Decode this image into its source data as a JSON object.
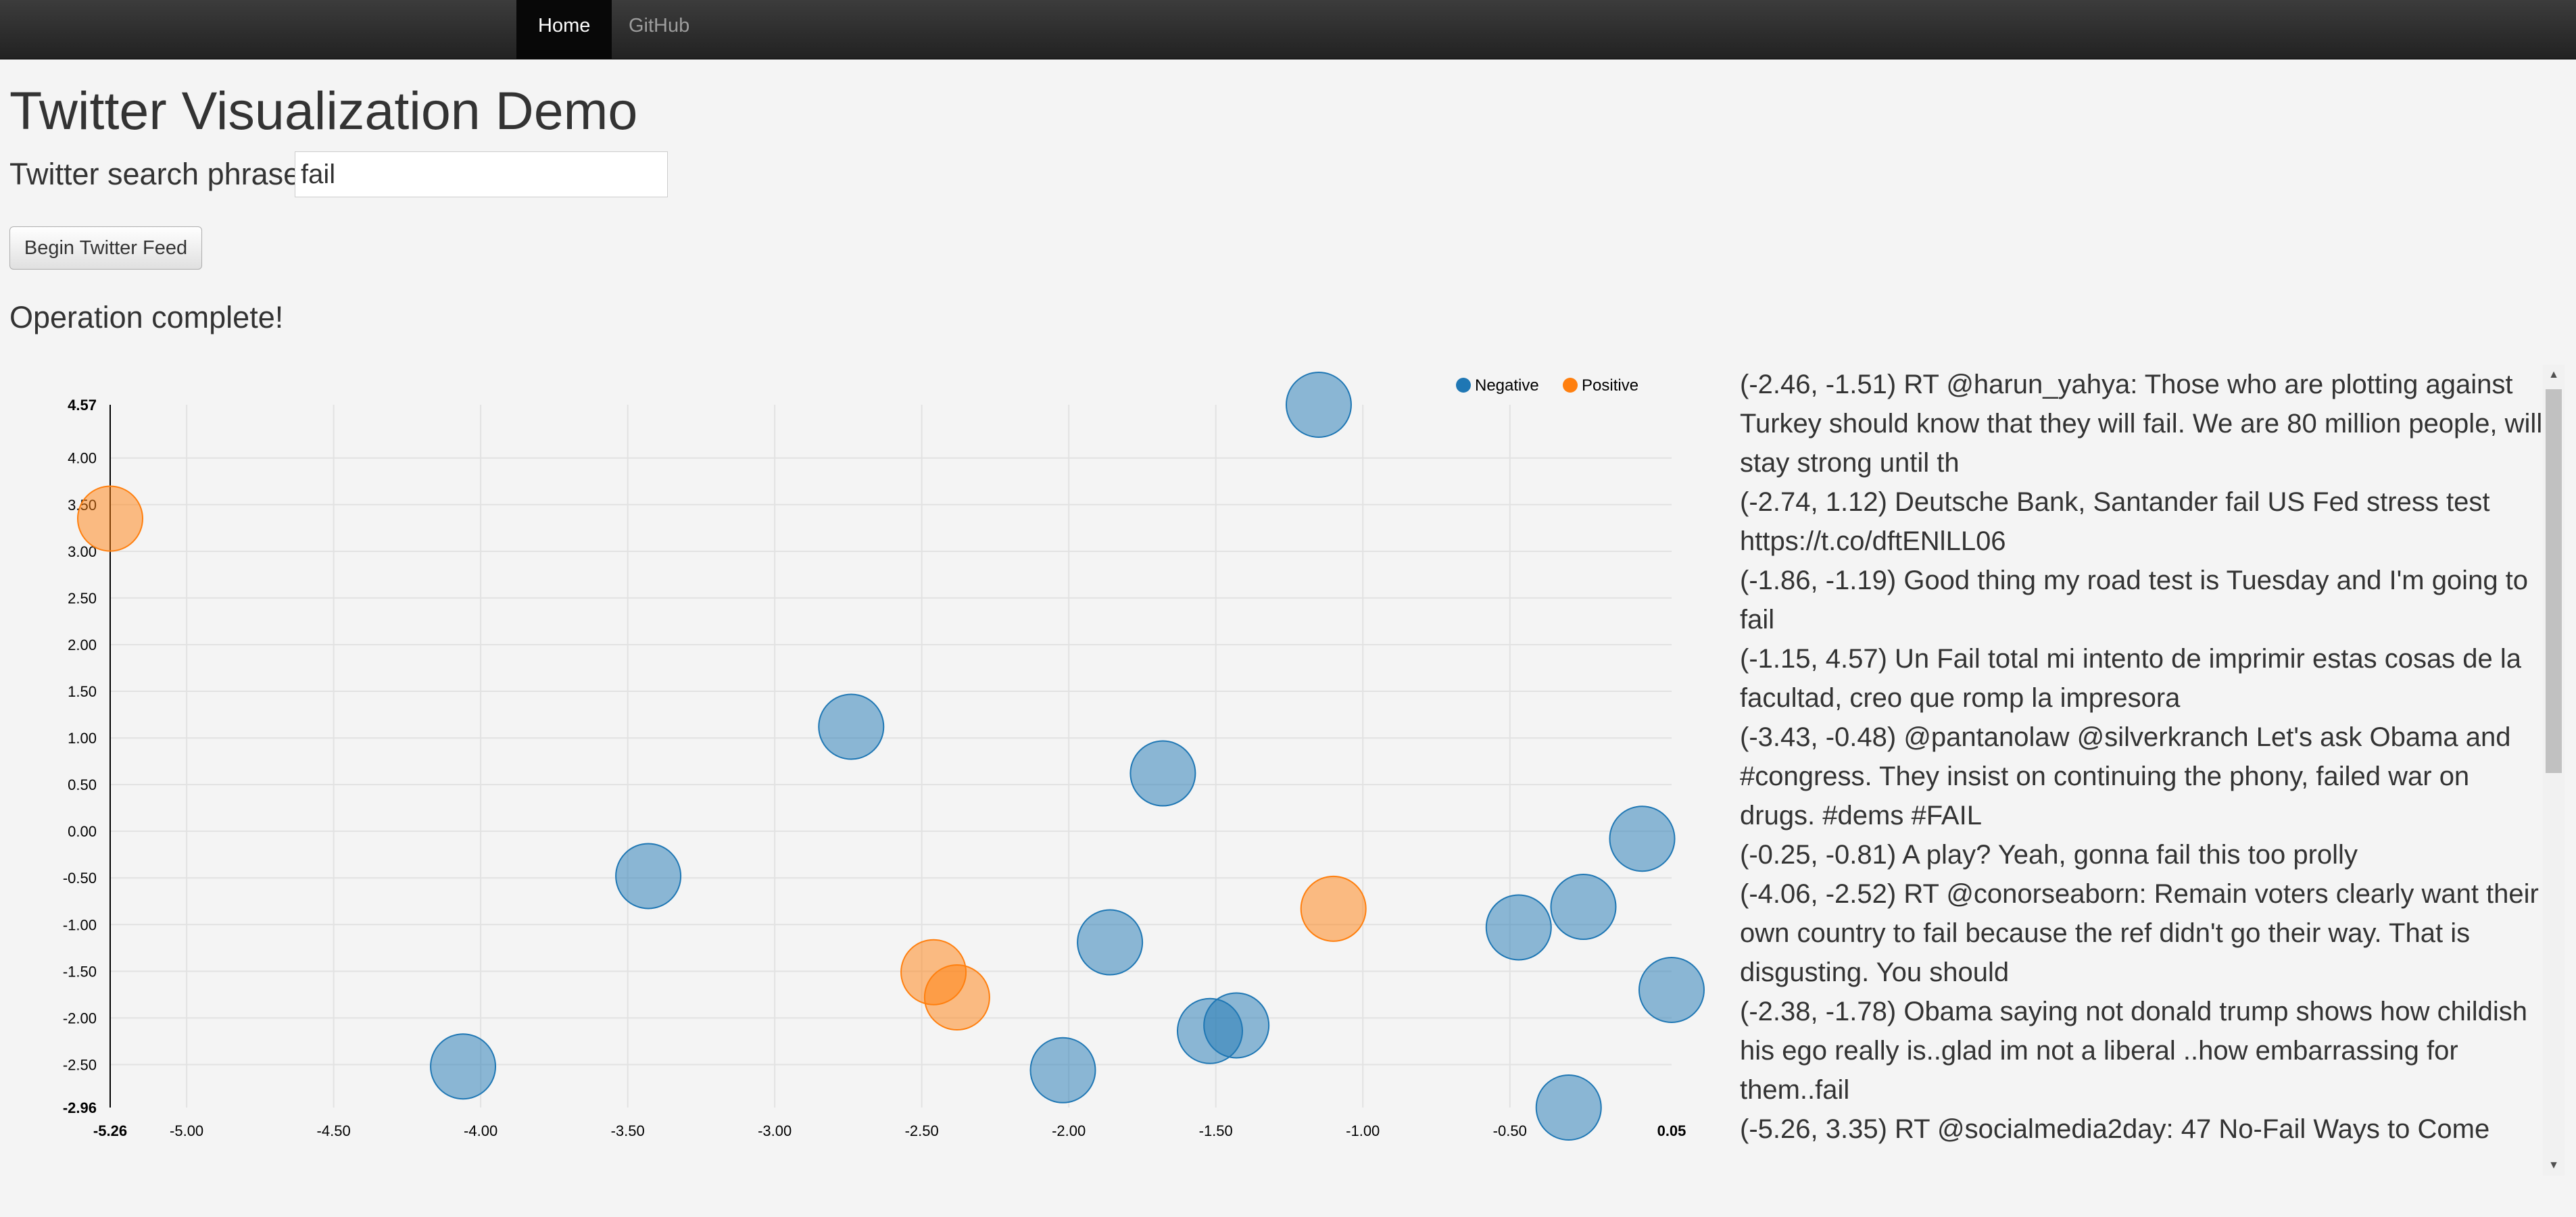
{
  "nav": {
    "home": "Home",
    "github": "GitHub"
  },
  "page": {
    "title": "Twitter Visualization Demo"
  },
  "search": {
    "label": "Twitter search phrase:",
    "value": "fail"
  },
  "actions": {
    "begin_label": "Begin Twitter Feed"
  },
  "status": {
    "text": "Operation complete!"
  },
  "colors": {
    "negative": "#1f77b4",
    "positive": "#ff7f0e"
  },
  "chart_data": {
    "type": "scatter",
    "legend": [
      "Negative",
      "Positive"
    ],
    "legend_position": "top-right",
    "grid": true,
    "xlim": [
      -5.26,
      0.05
    ],
    "ylim": [
      -2.96,
      4.57
    ],
    "x_ticks": [
      "-5.26",
      "-5.00",
      "-4.50",
      "-4.00",
      "-3.50",
      "-3.00",
      "-2.50",
      "-2.00",
      "-1.50",
      "-1.00",
      "-0.50",
      "0.05"
    ],
    "y_ticks": [
      "4.57",
      "4.00",
      "3.50",
      "3.00",
      "2.50",
      "2.00",
      "1.50",
      "1.00",
      "0.50",
      "0.00",
      "-0.50",
      "-1.00",
      "-1.50",
      "-2.00",
      "-2.50",
      "-2.96"
    ],
    "series": [
      {
        "name": "Negative",
        "points": [
          [
            -2.74,
            1.12
          ],
          [
            -1.86,
            -1.19
          ],
          [
            -1.15,
            4.57
          ],
          [
            -3.43,
            -0.48
          ],
          [
            -0.25,
            -0.81
          ],
          [
            -4.06,
            -2.52
          ],
          [
            -2.02,
            -2.56
          ],
          [
            -1.52,
            -2.14
          ],
          [
            -1.43,
            -2.08
          ],
          [
            -1.68,
            0.62
          ],
          [
            -0.47,
            -1.03
          ],
          [
            -0.05,
            -0.08
          ],
          [
            0.05,
            -1.7
          ],
          [
            -0.3,
            -2.96
          ]
        ]
      },
      {
        "name": "Positive",
        "points": [
          [
            -5.26,
            3.35
          ],
          [
            -2.46,
            -1.51
          ],
          [
            -2.38,
            -1.78
          ],
          [
            -1.1,
            -0.83
          ]
        ]
      }
    ]
  },
  "tweets": [
    "(-2.46, -1.51) RT @harun_yahya: Those who are plotting against Turkey should know that they will fail. We are 80 million people, will stay strong until th",
    "(-2.74, 1.12) Deutsche Bank, Santander fail US Fed stress test https://t.co/dftENlLL06",
    "(-1.86, -1.19) Good thing my road test is Tuesday and I'm going to fail",
    "(-1.15, 4.57) Un Fail total mi intento de imprimir estas cosas de la facultad, creo que romp la impresora",
    "(-3.43, -0.48) @pantanolaw @silverkranch Let's ask Obama and #congress. They insist on continuing the phony, failed war on drugs. #dems #FAIL",
    "(-0.25, -0.81) A play? Yeah, gonna fail this too prolly",
    "(-4.06, -2.52) RT @conorseaborn: Remain voters clearly want their own country to fail because the ref didn't go their way. That is disgusting. You should",
    "(-2.38, -1.78) Obama saying not donald trump shows how childish his ego really is..glad im not a liberal ..how embarrassing for them..fail",
    "(-5.26, 3.35) RT @socialmedia2day: 47 No-Fail Ways to Come"
  ]
}
